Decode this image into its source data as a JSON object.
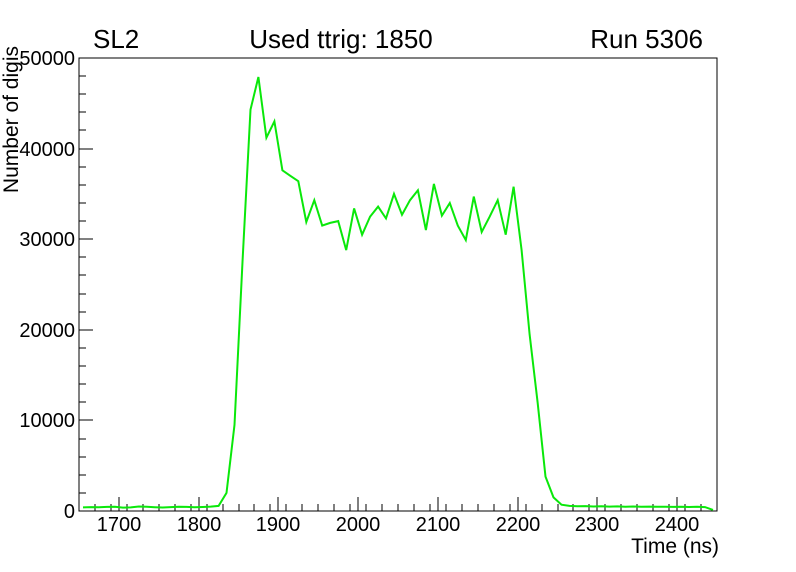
{
  "chart_data": {
    "type": "line",
    "style": "histogram-polyline",
    "title": "Used ttrig: 1850",
    "top_left_label": "SL2",
    "top_right_label": "Run 5306",
    "xlabel": "Time (ns)",
    "ylabel": "Number of digis",
    "xlim": [
      1650,
      2450
    ],
    "ylim": [
      0,
      50000
    ],
    "x_major_ticks": [
      1700,
      1800,
      1900,
      2000,
      2100,
      2200,
      2300,
      2400
    ],
    "x_minor_step": 20,
    "y_major_ticks": [
      0,
      10000,
      20000,
      30000,
      40000,
      50000
    ],
    "y_minor_step": 2000,
    "grid": false,
    "legend": "none",
    "line_color": "#0ae80a",
    "frame_color": "#000000",
    "x": [
      1655,
      1665,
      1675,
      1685,
      1695,
      1705,
      1715,
      1725,
      1735,
      1745,
      1755,
      1765,
      1775,
      1785,
      1795,
      1805,
      1815,
      1825,
      1835,
      1845,
      1855,
      1865,
      1875,
      1885,
      1895,
      1905,
      1915,
      1925,
      1935,
      1945,
      1955,
      1965,
      1975,
      1985,
      1995,
      2005,
      2015,
      2025,
      2035,
      2045,
      2055,
      2065,
      2075,
      2085,
      2095,
      2105,
      2115,
      2125,
      2135,
      2145,
      2155,
      2165,
      2175,
      2185,
      2195,
      2205,
      2215,
      2225,
      2235,
      2245,
      2255,
      2265,
      2275,
      2285,
      2295,
      2305,
      2315,
      2325,
      2335,
      2345,
      2355,
      2365,
      2375,
      2385,
      2395,
      2405,
      2415,
      2425,
      2435,
      2445
    ],
    "values": [
      400,
      430,
      410,
      450,
      470,
      380,
      400,
      500,
      460,
      420,
      390,
      430,
      480,
      450,
      410,
      440,
      490,
      560,
      2000,
      9500,
      27500,
      44300,
      47900,
      41200,
      43000,
      37600,
      37000,
      36400,
      31900,
      34300,
      31500,
      31800,
      32000,
      28800,
      33400,
      30500,
      32500,
      33600,
      32300,
      35000,
      32700,
      34300,
      35400,
      31000,
      36100,
      32600,
      34000,
      31500,
      29900,
      34700,
      30800,
      32500,
      34300,
      30500,
      35800,
      28800,
      19500,
      12000,
      3800,
      1500,
      700,
      560,
      520,
      540,
      500,
      520,
      490,
      510,
      480,
      500,
      470,
      490,
      460,
      480,
      450,
      470,
      440,
      460,
      430,
      120
    ]
  }
}
